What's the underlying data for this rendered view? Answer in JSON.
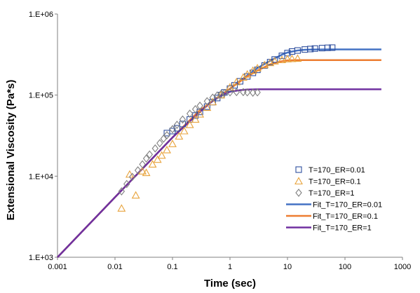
{
  "chart_data": {
    "type": "scatter",
    "title": "",
    "xlabel": "Time (sec)",
    "ylabel": "Extensional Viscosity (Pa*s)",
    "xscale": "log",
    "yscale": "log",
    "xlim": [
      0.001,
      1000
    ],
    "ylim": [
      1000,
      1000000
    ],
    "x_ticks": [
      {
        "value": 0.001,
        "label": "0.001"
      },
      {
        "value": 0.01,
        "label": "0.01"
      },
      {
        "value": 0.1,
        "label": "0.1"
      },
      {
        "value": 1,
        "label": "1"
      },
      {
        "value": 10,
        "label": "10"
      },
      {
        "value": 100,
        "label": "100"
      },
      {
        "value": 1000,
        "label": "1000"
      }
    ],
    "y_ticks": [
      {
        "value": 1000,
        "label": "1.E+03"
      },
      {
        "value": 10000,
        "label": "1.E+04"
      },
      {
        "value": 100000,
        "label": "1.E+05"
      },
      {
        "value": 1000000,
        "label": "1.E+06"
      }
    ],
    "grid": false,
    "legend_position": "bottom-right",
    "series": [
      {
        "name": "T=170_ER=0.01",
        "kind": "marker",
        "marker": "square",
        "color": "#2f4f9e",
        "points": [
          [
            0.08,
            34000
          ],
          [
            0.1,
            36000
          ],
          [
            0.12,
            39000
          ],
          [
            0.15,
            44000
          ],
          [
            0.2,
            50000
          ],
          [
            0.25,
            56000
          ],
          [
            0.3,
            62000
          ],
          [
            0.4,
            72000
          ],
          [
            0.5,
            82000
          ],
          [
            0.6,
            92000
          ],
          [
            0.7,
            100000
          ],
          [
            0.8,
            108000
          ],
          [
            1.0,
            120000
          ],
          [
            1.2,
            132000
          ],
          [
            1.5,
            148000
          ],
          [
            2.0,
            170000
          ],
          [
            2.5,
            188000
          ],
          [
            3.0,
            205000
          ],
          [
            4.0,
            232000
          ],
          [
            5.0,
            255000
          ],
          [
            6.0,
            275000
          ],
          [
            8.0,
            305000
          ],
          [
            10.0,
            330000
          ],
          [
            12.0,
            345000
          ],
          [
            15.0,
            355000
          ],
          [
            20.0,
            365000
          ],
          [
            25.0,
            370000
          ],
          [
            30.0,
            375000
          ],
          [
            40.0,
            380000
          ],
          [
            50.0,
            383000
          ],
          [
            60.0,
            385000
          ]
        ]
      },
      {
        "name": "T=170_ER=0.1",
        "kind": "marker",
        "marker": "triangle",
        "color": "#e8a33c",
        "points": [
          [
            0.013,
            4000
          ],
          [
            0.018,
            10500
          ],
          [
            0.023,
            5800
          ],
          [
            0.03,
            11500
          ],
          [
            0.035,
            11000
          ],
          [
            0.045,
            14000
          ],
          [
            0.055,
            16000
          ],
          [
            0.065,
            18000
          ],
          [
            0.08,
            21000
          ],
          [
            0.1,
            25000
          ],
          [
            0.13,
            31000
          ],
          [
            0.16,
            36000
          ],
          [
            0.2,
            43000
          ],
          [
            0.25,
            50000
          ],
          [
            0.3,
            58000
          ],
          [
            0.4,
            70000
          ],
          [
            0.5,
            82000
          ],
          [
            0.7,
            100000
          ],
          [
            1.0,
            125000
          ],
          [
            1.3,
            145000
          ],
          [
            1.7,
            165000
          ],
          [
            2.0,
            180000
          ],
          [
            2.5,
            200000
          ],
          [
            3.0,
            215000
          ],
          [
            4.0,
            235000
          ],
          [
            5.0,
            250000
          ],
          [
            6.0,
            262000
          ],
          [
            8.0,
            272000
          ],
          [
            10.0,
            278000
          ],
          [
            12.0,
            280000
          ],
          [
            15.0,
            282000
          ]
        ]
      },
      {
        "name": "T=170_ER=1",
        "kind": "marker",
        "marker": "diamond",
        "color": "#808080",
        "points": [
          [
            0.013,
            6500
          ],
          [
            0.016,
            8000
          ],
          [
            0.02,
            9800
          ],
          [
            0.025,
            11800
          ],
          [
            0.03,
            14000
          ],
          [
            0.035,
            16500
          ],
          [
            0.04,
            18500
          ],
          [
            0.05,
            22000
          ],
          [
            0.06,
            25500
          ],
          [
            0.07,
            29000
          ],
          [
            0.08,
            32000
          ],
          [
            0.1,
            38000
          ],
          [
            0.12,
            43000
          ],
          [
            0.15,
            50000
          ],
          [
            0.2,
            59000
          ],
          [
            0.25,
            67000
          ],
          [
            0.3,
            74000
          ],
          [
            0.4,
            84000
          ],
          [
            0.5,
            93000
          ],
          [
            0.6,
            99000
          ],
          [
            0.7,
            103000
          ],
          [
            0.8,
            106000
          ],
          [
            1.0,
            108000
          ],
          [
            1.3,
            109000
          ],
          [
            1.7,
            109000
          ],
          [
            2.0,
            108000
          ],
          [
            2.5,
            107000
          ],
          [
            3.0,
            108000
          ]
        ]
      },
      {
        "name": "Fit_T=170_ER=0.01",
        "kind": "line",
        "color": "#4472c4",
        "points": [
          [
            0.001,
            1000
          ],
          [
            0.01,
            5500
          ],
          [
            0.1,
            30000
          ],
          [
            0.3,
            65000
          ],
          [
            1.0,
            120000
          ],
          [
            2.0,
            175000
          ],
          [
            3.0,
            215000
          ],
          [
            5.0,
            265000
          ],
          [
            8.0,
            315000
          ],
          [
            10.0,
            335000
          ],
          [
            15.0,
            355000
          ],
          [
            20.0,
            362000
          ],
          [
            30.0,
            365000
          ],
          [
            50.0,
            366000
          ],
          [
            100.0,
            366000
          ],
          [
            430.0,
            366000
          ]
        ]
      },
      {
        "name": "Fit_T=170_ER=0.1",
        "kind": "line",
        "color": "#ed7d31",
        "points": [
          [
            0.001,
            1000
          ],
          [
            0.01,
            5500
          ],
          [
            0.1,
            30000
          ],
          [
            0.3,
            65000
          ],
          [
            1.0,
            120000
          ],
          [
            2.0,
            170000
          ],
          [
            3.0,
            200000
          ],
          [
            5.0,
            240000
          ],
          [
            8.0,
            262000
          ],
          [
            10.0,
            268000
          ],
          [
            15.0,
            270000
          ],
          [
            20.0,
            270000
          ],
          [
            100.0,
            270000
          ],
          [
            430.0,
            270000
          ]
        ]
      },
      {
        "name": "Fit_T=170_ER=1",
        "kind": "line",
        "color": "#7030a0",
        "points": [
          [
            0.001,
            1000
          ],
          [
            0.01,
            5500
          ],
          [
            0.1,
            30000
          ],
          [
            0.3,
            62000
          ],
          [
            0.5,
            85000
          ],
          [
            0.8,
            103000
          ],
          [
            1.0,
            110000
          ],
          [
            1.5,
            115000
          ],
          [
            2.0,
            117000
          ],
          [
            3.0,
            118000
          ],
          [
            5.0,
            118000
          ],
          [
            10.0,
            118000
          ],
          [
            100.0,
            118000
          ],
          [
            430.0,
            118000
          ]
        ]
      }
    ]
  }
}
